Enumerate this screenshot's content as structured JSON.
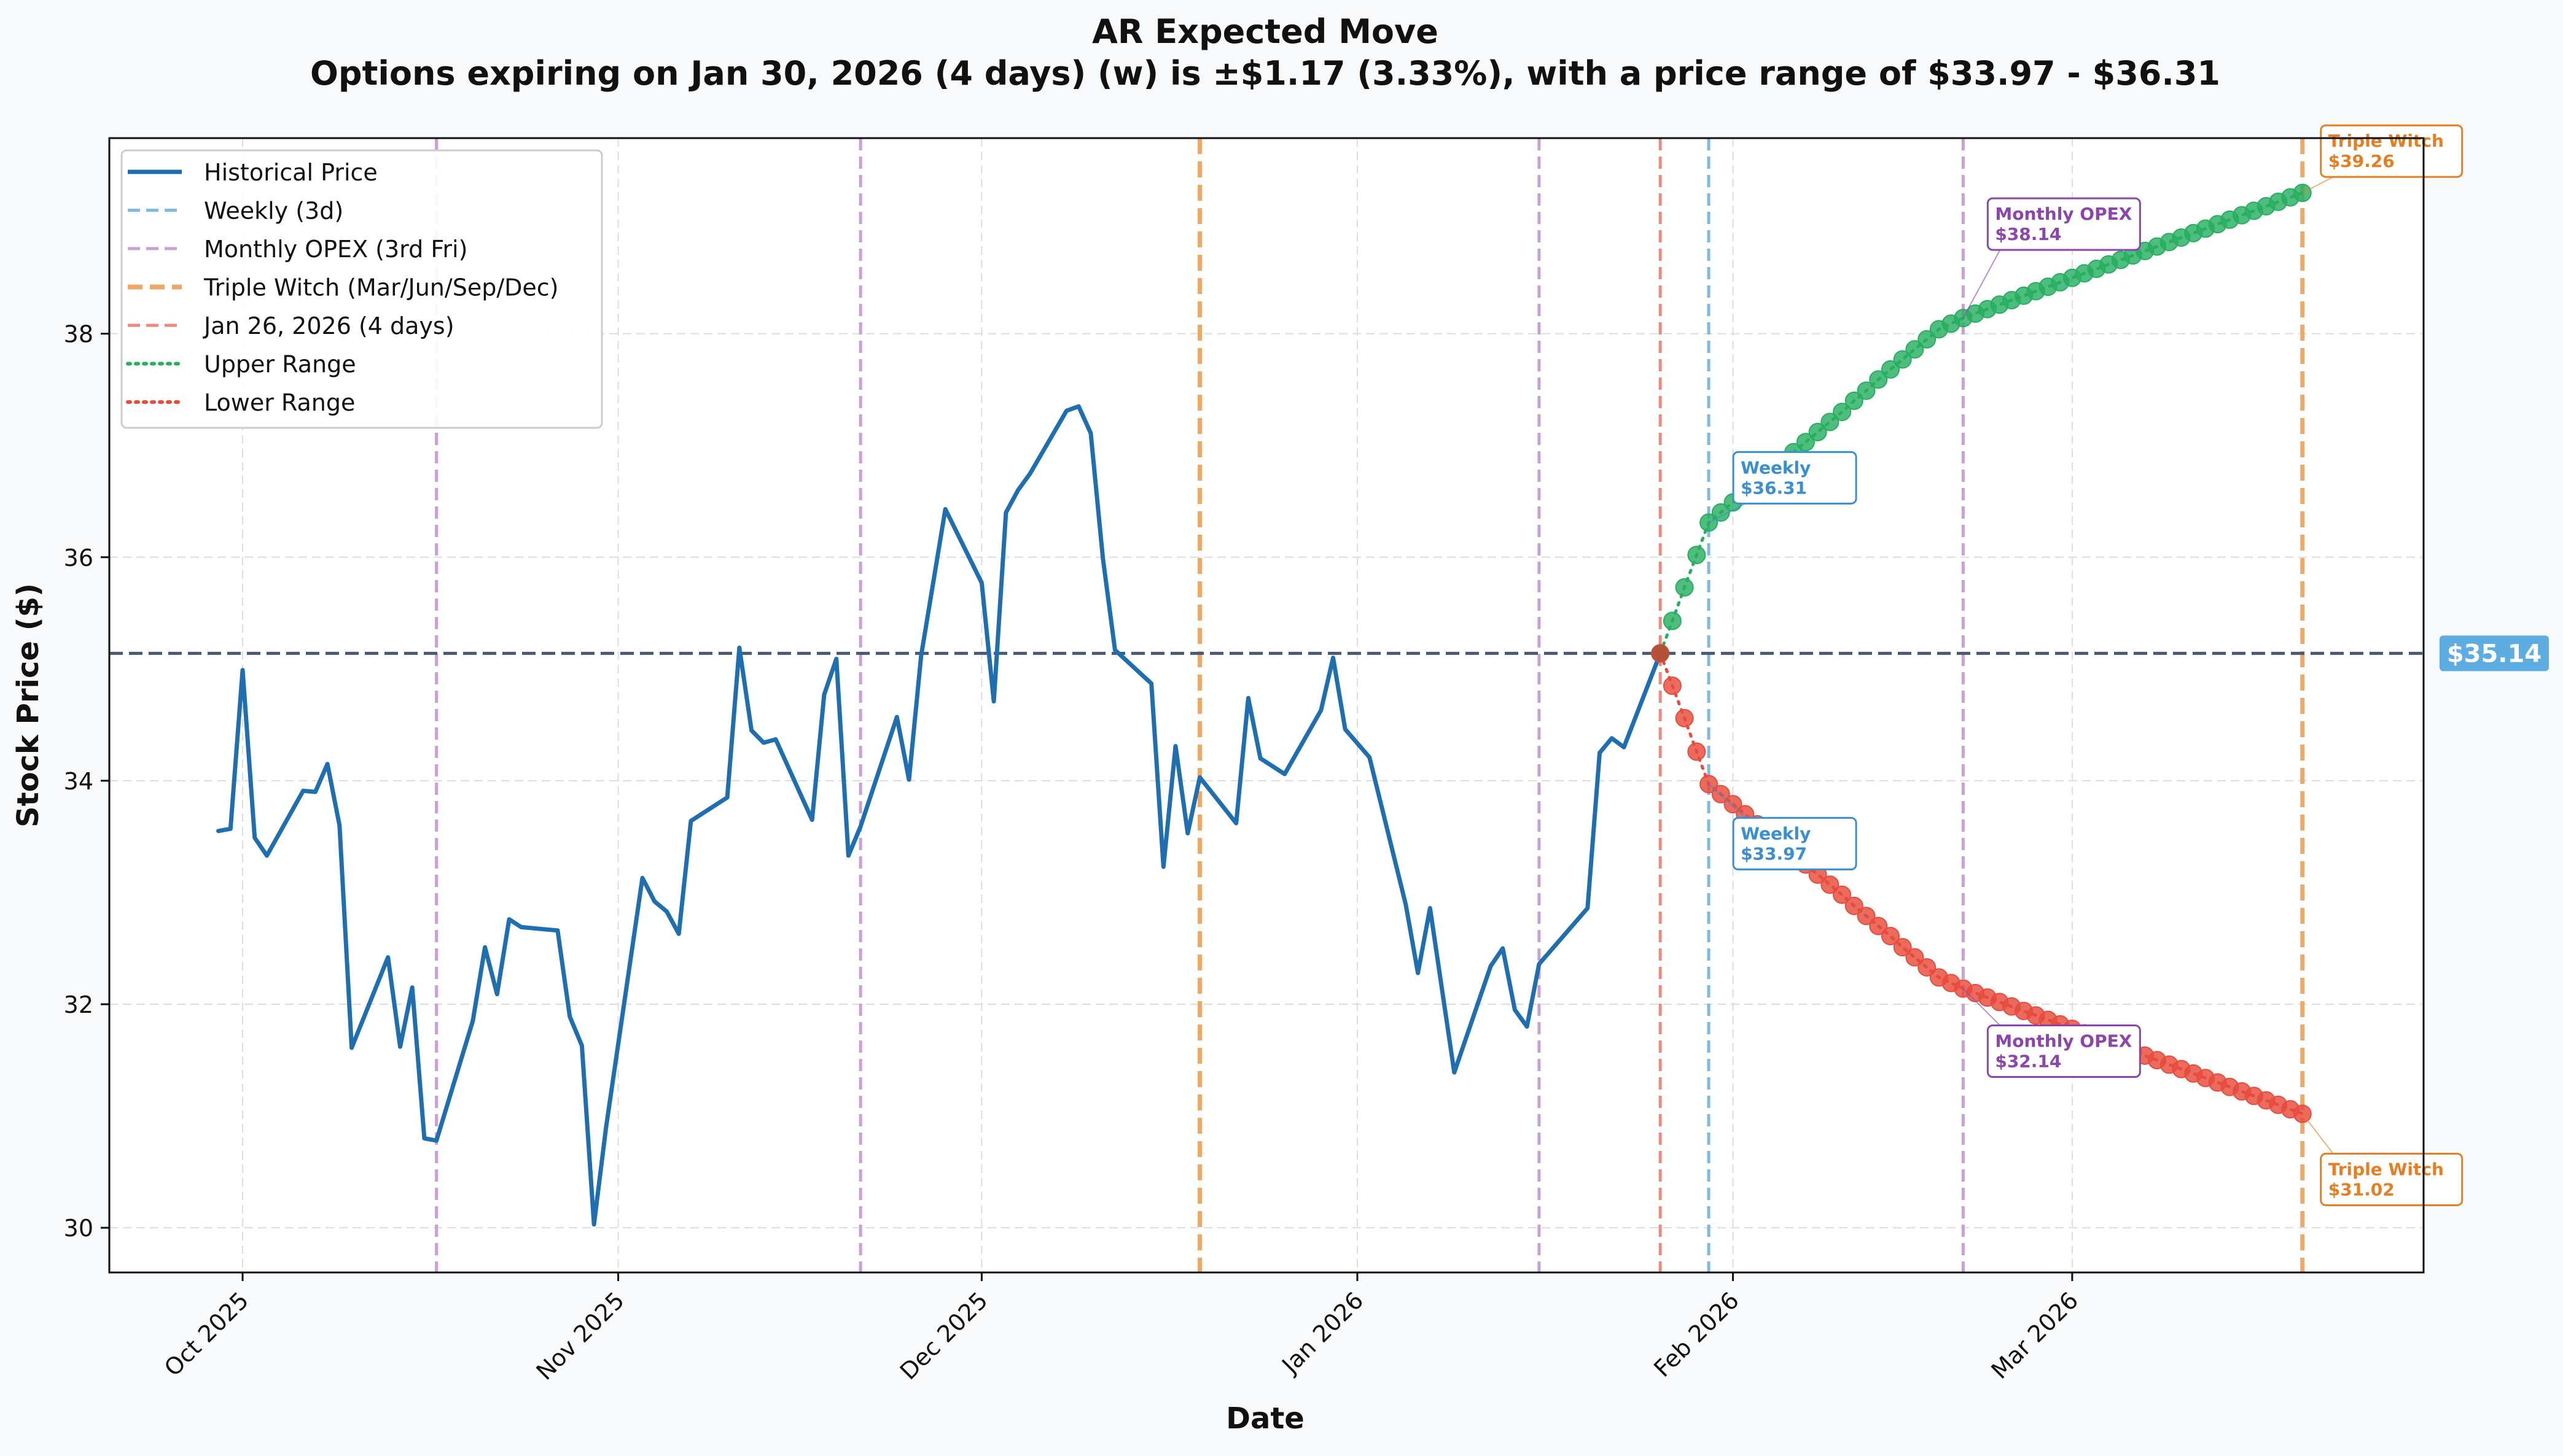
{
  "chart_data": {
    "type": "line",
    "title": "AR Expected Move",
    "subtitle": "Options expiring on Jan 30, 2026 (4 days) (w) is ±$1.17 (3.33%), with a price range of $33.97 - $36.31",
    "xlabel": "Date",
    "ylabel": "Stock Price ($)",
    "x_range": [
      "2025-09-20",
      "2026-03-30"
    ],
    "ylim": [
      29.6,
      39.75
    ],
    "grid": true,
    "legend_position": "top-left",
    "x_ticks": [
      {
        "date": "2025-10-01",
        "label": "Oct 2025"
      },
      {
        "date": "2025-11-01",
        "label": "Nov 2025"
      },
      {
        "date": "2025-12-01",
        "label": "Dec 2025"
      },
      {
        "date": "2026-01-01",
        "label": "Jan 2026"
      },
      {
        "date": "2026-02-01",
        "label": "Feb 2026"
      },
      {
        "date": "2026-03-01",
        "label": "Mar 2026"
      }
    ],
    "y_ticks": [
      30,
      32,
      34,
      36,
      38
    ],
    "current_price": {
      "value": 35.14,
      "label": "$35.14",
      "color": "#5dade2"
    },
    "legend": [
      {
        "label": "Historical Price",
        "style": "solid",
        "color": "#1f6fb0"
      },
      {
        "label": "Weekly (3d)",
        "style": "dashed",
        "color": "#7fb9e0"
      },
      {
        "label": "Monthly OPEX (3rd Fri)",
        "style": "dashed",
        "color": "#c7a0d8"
      },
      {
        "label": "Triple Witch (Mar/Jun/Sep/Dec)",
        "style": "dashed-thick",
        "color": "#f0a868"
      },
      {
        "label": "Jan 26, 2026 (4 days)",
        "style": "dashed",
        "color": "#ec8a80"
      },
      {
        "label": "Upper Range",
        "style": "dotted",
        "color": "#27ae60"
      },
      {
        "label": "Lower Range",
        "style": "dotted",
        "color": "#e74c3c"
      }
    ],
    "vertical_lines": [
      {
        "date": "2025-10-17",
        "kind": "monthly",
        "color": "#c7a0d8"
      },
      {
        "date": "2025-11-21",
        "kind": "monthly",
        "color": "#c7a0d8"
      },
      {
        "date": "2025-12-19",
        "kind": "triple",
        "color": "#f0a868"
      },
      {
        "date": "2026-01-16",
        "kind": "monthly",
        "color": "#c7a0d8"
      },
      {
        "date": "2026-01-26",
        "kind": "today",
        "color": "#ec8a80"
      },
      {
        "date": "2026-01-30",
        "kind": "weekly",
        "color": "#7fb9e0"
      },
      {
        "date": "2026-02-20",
        "kind": "monthly",
        "color": "#c7a0d8"
      },
      {
        "date": "2026-03-20",
        "kind": "triple",
        "color": "#f0a868"
      }
    ],
    "series": [
      {
        "name": "Historical Price",
        "color": "#1f6fb0",
        "points": [
          [
            "2025-09-29",
            33.55
          ],
          [
            "2025-09-30",
            33.57
          ],
          [
            "2025-10-01",
            34.99
          ],
          [
            "2025-10-02",
            33.49
          ],
          [
            "2025-10-03",
            33.33
          ],
          [
            "2025-10-06",
            33.91
          ],
          [
            "2025-10-07",
            33.9
          ],
          [
            "2025-10-08",
            34.15
          ],
          [
            "2025-10-09",
            33.6
          ],
          [
            "2025-10-10",
            31.61
          ],
          [
            "2025-10-13",
            32.42
          ],
          [
            "2025-10-14",
            31.62
          ],
          [
            "2025-10-15",
            32.15
          ],
          [
            "2025-10-16",
            30.8
          ],
          [
            "2025-10-17",
            30.78
          ],
          [
            "2025-10-20",
            31.85
          ],
          [
            "2025-10-21",
            32.51
          ],
          [
            "2025-10-22",
            32.09
          ],
          [
            "2025-10-23",
            32.76
          ],
          [
            "2025-10-24",
            32.69
          ],
          [
            "2025-10-27",
            32.66
          ],
          [
            "2025-10-28",
            31.89
          ],
          [
            "2025-10-29",
            31.63
          ],
          [
            "2025-10-30",
            30.03
          ],
          [
            "2025-10-31",
            30.9
          ],
          [
            "2025-11-03",
            33.13
          ],
          [
            "2025-11-04",
            32.92
          ],
          [
            "2025-11-05",
            32.83
          ],
          [
            "2025-11-06",
            32.63
          ],
          [
            "2025-11-07",
            33.64
          ],
          [
            "2025-11-10",
            33.85
          ],
          [
            "2025-11-11",
            35.19
          ],
          [
            "2025-11-12",
            34.45
          ],
          [
            "2025-11-13",
            34.34
          ],
          [
            "2025-11-14",
            34.37
          ],
          [
            "2025-11-17",
            33.65
          ],
          [
            "2025-11-18",
            34.77
          ],
          [
            "2025-11-19",
            35.09
          ],
          [
            "2025-11-20",
            33.33
          ],
          [
            "2025-11-21",
            33.59
          ],
          [
            "2025-11-24",
            34.57
          ],
          [
            "2025-11-25",
            34.01
          ],
          [
            "2025-11-26",
            35.12
          ],
          [
            "2025-11-28",
            36.43
          ],
          [
            "2025-12-01",
            35.77
          ],
          [
            "2025-12-02",
            34.71
          ],
          [
            "2025-12-03",
            36.4
          ],
          [
            "2025-12-04",
            36.6
          ],
          [
            "2025-12-05",
            36.75
          ],
          [
            "2025-12-08",
            37.31
          ],
          [
            "2025-12-09",
            37.35
          ],
          [
            "2025-12-10",
            37.11
          ],
          [
            "2025-12-11",
            35.99
          ],
          [
            "2025-12-12",
            35.17
          ],
          [
            "2025-12-15",
            34.87
          ],
          [
            "2025-12-16",
            33.23
          ],
          [
            "2025-12-17",
            34.31
          ],
          [
            "2025-12-18",
            33.53
          ],
          [
            "2025-12-19",
            34.03
          ],
          [
            "2025-12-22",
            33.62
          ],
          [
            "2025-12-23",
            34.74
          ],
          [
            "2025-12-24",
            34.2
          ],
          [
            "2025-12-26",
            34.06
          ],
          [
            "2025-12-29",
            34.63
          ],
          [
            "2025-12-30",
            35.1
          ],
          [
            "2025-12-31",
            34.46
          ],
          [
            "2026-01-02",
            34.21
          ],
          [
            "2026-01-05",
            32.89
          ],
          [
            "2026-01-06",
            32.28
          ],
          [
            "2026-01-07",
            32.86
          ],
          [
            "2026-01-09",
            31.39
          ],
          [
            "2026-01-12",
            32.34
          ],
          [
            "2026-01-13",
            32.5
          ],
          [
            "2026-01-14",
            31.95
          ],
          [
            "2026-01-15",
            31.8
          ],
          [
            "2026-01-16",
            32.36
          ],
          [
            "2026-01-20",
            32.86
          ],
          [
            "2026-01-21",
            34.25
          ],
          [
            "2026-01-22",
            34.38
          ],
          [
            "2026-01-23",
            34.3
          ],
          [
            "2026-01-26",
            35.14
          ]
        ]
      },
      {
        "name": "Upper Range",
        "color": "#27ae60",
        "points": [
          [
            "2026-01-26",
            35.14
          ],
          [
            "2026-01-27",
            35.43
          ],
          [
            "2026-01-28",
            35.73
          ],
          [
            "2026-01-29",
            36.02
          ],
          [
            "2026-01-30",
            36.31
          ],
          [
            "2026-01-31",
            36.4
          ],
          [
            "2026-02-01",
            36.49
          ],
          [
            "2026-02-02",
            36.58
          ],
          [
            "2026-02-03",
            36.67
          ],
          [
            "2026-02-04",
            36.76
          ],
          [
            "2026-02-05",
            36.85
          ],
          [
            "2026-02-06",
            36.94
          ],
          [
            "2026-02-07",
            37.03
          ],
          [
            "2026-02-08",
            37.12
          ],
          [
            "2026-02-09",
            37.21
          ],
          [
            "2026-02-10",
            37.3
          ],
          [
            "2026-02-11",
            37.4
          ],
          [
            "2026-02-12",
            37.49
          ],
          [
            "2026-02-13",
            37.59
          ],
          [
            "2026-02-14",
            37.68
          ],
          [
            "2026-02-15",
            37.77
          ],
          [
            "2026-02-16",
            37.86
          ],
          [
            "2026-02-17",
            37.95
          ],
          [
            "2026-02-18",
            38.04
          ],
          [
            "2026-02-19",
            38.09
          ],
          [
            "2026-02-20",
            38.14
          ],
          [
            "2026-02-21",
            38.18
          ],
          [
            "2026-02-22",
            38.22
          ],
          [
            "2026-02-23",
            38.26
          ],
          [
            "2026-02-24",
            38.3
          ],
          [
            "2026-02-25",
            38.34
          ],
          [
            "2026-02-26",
            38.38
          ],
          [
            "2026-02-27",
            38.42
          ],
          [
            "2026-02-28",
            38.46
          ],
          [
            "2026-03-01",
            38.5
          ],
          [
            "2026-03-02",
            38.54
          ],
          [
            "2026-03-03",
            38.58
          ],
          [
            "2026-03-04",
            38.62
          ],
          [
            "2026-03-05",
            38.66
          ],
          [
            "2026-03-06",
            38.7
          ],
          [
            "2026-03-07",
            38.74
          ],
          [
            "2026-03-08",
            38.78
          ],
          [
            "2026-03-09",
            38.82
          ],
          [
            "2026-03-10",
            38.86
          ],
          [
            "2026-03-11",
            38.9
          ],
          [
            "2026-03-12",
            38.94
          ],
          [
            "2026-03-13",
            38.98
          ],
          [
            "2026-03-14",
            39.02
          ],
          [
            "2026-03-15",
            39.06
          ],
          [
            "2026-03-16",
            39.1
          ],
          [
            "2026-03-17",
            39.14
          ],
          [
            "2026-03-18",
            39.18
          ],
          [
            "2026-03-19",
            39.22
          ],
          [
            "2026-03-20",
            39.26
          ]
        ]
      },
      {
        "name": "Lower Range",
        "color": "#e74c3c",
        "points": [
          [
            "2026-01-26",
            35.14
          ],
          [
            "2026-01-27",
            34.85
          ],
          [
            "2026-01-28",
            34.56
          ],
          [
            "2026-01-29",
            34.26
          ],
          [
            "2026-01-30",
            33.97
          ],
          [
            "2026-01-31",
            33.88
          ],
          [
            "2026-02-01",
            33.79
          ],
          [
            "2026-02-02",
            33.7
          ],
          [
            "2026-02-03",
            33.61
          ],
          [
            "2026-02-04",
            33.52
          ],
          [
            "2026-02-05",
            33.43
          ],
          [
            "2026-02-06",
            33.34
          ],
          [
            "2026-02-07",
            33.25
          ],
          [
            "2026-02-08",
            33.16
          ],
          [
            "2026-02-09",
            33.07
          ],
          [
            "2026-02-10",
            32.98
          ],
          [
            "2026-02-11",
            32.88
          ],
          [
            "2026-02-12",
            32.79
          ],
          [
            "2026-02-13",
            32.7
          ],
          [
            "2026-02-14",
            32.61
          ],
          [
            "2026-02-15",
            32.51
          ],
          [
            "2026-02-16",
            32.42
          ],
          [
            "2026-02-17",
            32.33
          ],
          [
            "2026-02-18",
            32.24
          ],
          [
            "2026-02-19",
            32.19
          ],
          [
            "2026-02-20",
            32.14
          ],
          [
            "2026-02-21",
            32.1
          ],
          [
            "2026-02-22",
            32.06
          ],
          [
            "2026-02-23",
            32.02
          ],
          [
            "2026-02-24",
            31.98
          ],
          [
            "2026-02-25",
            31.94
          ],
          [
            "2026-02-26",
            31.9
          ],
          [
            "2026-02-27",
            31.86
          ],
          [
            "2026-02-28",
            31.82
          ],
          [
            "2026-03-01",
            31.78
          ],
          [
            "2026-03-02",
            31.74
          ],
          [
            "2026-03-03",
            31.7
          ],
          [
            "2026-03-04",
            31.66
          ],
          [
            "2026-03-05",
            31.62
          ],
          [
            "2026-03-06",
            31.58
          ],
          [
            "2026-03-07",
            31.54
          ],
          [
            "2026-03-08",
            31.5
          ],
          [
            "2026-03-09",
            31.46
          ],
          [
            "2026-03-10",
            31.42
          ],
          [
            "2026-03-11",
            31.38
          ],
          [
            "2026-03-12",
            31.34
          ],
          [
            "2026-03-13",
            31.3
          ],
          [
            "2026-03-14",
            31.26
          ],
          [
            "2026-03-15",
            31.22
          ],
          [
            "2026-03-16",
            31.18
          ],
          [
            "2026-03-17",
            31.14
          ],
          [
            "2026-03-18",
            31.1
          ],
          [
            "2026-03-19",
            31.06
          ],
          [
            "2026-03-20",
            31.02
          ]
        ]
      }
    ],
    "annotations": [
      {
        "name": "weekly-upper",
        "title": "Weekly",
        "value": "$36.31",
        "target_date": "2026-01-30",
        "target_value": 36.31,
        "color": "#3a8fd0",
        "placement": "above-right"
      },
      {
        "name": "weekly-lower",
        "title": "Weekly",
        "value": "$33.97",
        "target_date": "2026-01-30",
        "target_value": 33.97,
        "color": "#3a8fd0",
        "placement": "below-right"
      },
      {
        "name": "monthly-upper",
        "title": "Monthly OPEX",
        "value": "$38.14",
        "target_date": "2026-02-20",
        "target_value": 38.14,
        "color": "#8e44ad",
        "placement": "above-right"
      },
      {
        "name": "monthly-lower",
        "title": "Monthly OPEX",
        "value": "$32.14",
        "target_date": "2026-02-20",
        "target_value": 32.14,
        "color": "#8e44ad",
        "placement": "below-right"
      },
      {
        "name": "triple-upper",
        "title": "Triple Witch",
        "value": "$39.26",
        "target_date": "2026-03-20",
        "target_value": 39.26,
        "color": "#e67e22",
        "placement": "top-right"
      },
      {
        "name": "triple-lower",
        "title": "Triple Witch",
        "value": "$31.02",
        "target_date": "2026-03-20",
        "target_value": 31.02,
        "color": "#e67e22",
        "placement": "bottom-right"
      }
    ]
  }
}
